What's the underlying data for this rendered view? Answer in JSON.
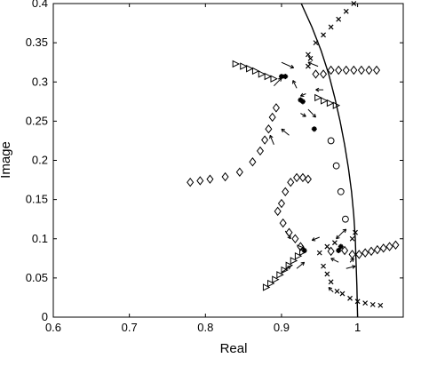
{
  "chart_data": {
    "type": "scatter",
    "xlabel": "Real",
    "ylabel": "Image",
    "xlim": [
      0.6,
      1.06
    ],
    "ylim": [
      0,
      0.4
    ],
    "xticks": [
      "0.6",
      "0.7",
      "0.8",
      "0.9",
      "1"
    ],
    "yticks": [
      "0",
      "0.05",
      "0.1",
      "0.15",
      "0.2",
      "0.25",
      "0.3",
      "0.35",
      "0.4"
    ],
    "xtick_values": [
      0.6,
      0.7,
      0.8,
      0.9,
      1.0
    ],
    "ytick_values": [
      0,
      0.05,
      0.1,
      0.15,
      0.2,
      0.25,
      0.3,
      0.35,
      0.4
    ],
    "curve": {
      "points": [
        [
          0.926,
          0.4
        ],
        [
          0.94,
          0.37
        ],
        [
          0.952,
          0.34
        ],
        [
          0.962,
          0.31
        ],
        [
          0.97,
          0.28
        ],
        [
          0.977,
          0.25
        ],
        [
          0.983,
          0.22
        ],
        [
          0.988,
          0.19
        ],
        [
          0.992,
          0.16
        ],
        [
          0.995,
          0.13
        ],
        [
          0.997,
          0.1
        ],
        [
          0.998,
          0.07
        ],
        [
          0.999,
          0.04
        ],
        [
          1.0,
          0.0
        ]
      ]
    },
    "series": [
      {
        "marker": "diamond",
        "points": [
          [
            0.78,
            0.172
          ],
          [
            0.793,
            0.174
          ],
          [
            0.806,
            0.176
          ],
          [
            0.826,
            0.179
          ],
          [
            0.845,
            0.185
          ],
          [
            0.862,
            0.198
          ],
          [
            0.872,
            0.212
          ],
          [
            0.878,
            0.226
          ],
          [
            0.883,
            0.24
          ],
          [
            0.888,
            0.255
          ],
          [
            0.893,
            0.267
          ],
          [
            0.965,
            0.315
          ],
          [
            0.975,
            0.315
          ],
          [
            0.985,
            0.315
          ],
          [
            0.995,
            0.315
          ],
          [
            1.005,
            0.315
          ],
          [
            1.015,
            0.315
          ],
          [
            1.025,
            0.315
          ],
          [
            0.955,
            0.31
          ],
          [
            0.945,
            0.31
          ],
          [
            0.9,
            0.145
          ],
          [
            0.905,
            0.16
          ],
          [
            0.912,
            0.172
          ],
          [
            0.92,
            0.178
          ],
          [
            0.928,
            0.178
          ],
          [
            0.935,
            0.176
          ],
          [
            0.895,
            0.135
          ],
          [
            0.902,
            0.12
          ],
          [
            0.91,
            0.108
          ],
          [
            0.918,
            0.1
          ],
          [
            0.925,
            0.09
          ],
          [
            0.993,
            0.08
          ],
          [
            1.002,
            0.08
          ],
          [
            1.01,
            0.082
          ],
          [
            1.018,
            0.084
          ],
          [
            1.026,
            0.086
          ],
          [
            1.034,
            0.088
          ],
          [
            1.042,
            0.09
          ],
          [
            1.05,
            0.092
          ],
          [
            0.983,
            0.085
          ],
          [
            0.965,
            0.084
          ]
        ]
      },
      {
        "marker": "triangle",
        "points": [
          [
            0.84,
            0.323
          ],
          [
            0.85,
            0.32
          ],
          [
            0.858,
            0.317
          ],
          [
            0.866,
            0.314
          ],
          [
            0.874,
            0.31
          ],
          [
            0.882,
            0.307
          ],
          [
            0.89,
            0.304
          ],
          [
            0.948,
            0.28
          ],
          [
            0.956,
            0.276
          ],
          [
            0.964,
            0.273
          ],
          [
            0.972,
            0.27
          ],
          [
            0.88,
            0.038
          ],
          [
            0.886,
            0.043
          ],
          [
            0.892,
            0.048
          ],
          [
            0.898,
            0.054
          ],
          [
            0.904,
            0.06
          ],
          [
            0.91,
            0.066
          ],
          [
            0.916,
            0.072
          ],
          [
            0.922,
            0.078
          ],
          [
            0.928,
            0.083
          ]
        ]
      },
      {
        "marker": "circle",
        "points": [
          [
            0.965,
            0.225
          ],
          [
            0.972,
            0.193
          ],
          [
            0.978,
            0.16
          ],
          [
            0.984,
            0.125
          ]
        ]
      },
      {
        "marker": "x",
        "points": [
          [
            0.935,
            0.335
          ],
          [
            0.945,
            0.35
          ],
          [
            0.955,
            0.36
          ],
          [
            0.965,
            0.37
          ],
          [
            0.975,
            0.38
          ],
          [
            0.985,
            0.39
          ],
          [
            0.995,
            0.4
          ],
          [
            0.935,
            0.32
          ],
          [
            0.938,
            0.33
          ],
          [
            0.95,
            0.082
          ],
          [
            0.955,
            0.065
          ],
          [
            0.96,
            0.055
          ],
          [
            0.965,
            0.045
          ],
          [
            0.973,
            0.033
          ],
          [
            0.98,
            0.03
          ],
          [
            0.99,
            0.024
          ],
          [
            1.0,
            0.02
          ],
          [
            1.01,
            0.018
          ],
          [
            1.02,
            0.016
          ],
          [
            1.03,
            0.015
          ],
          [
            0.993,
            0.1
          ],
          [
            0.997,
            0.108
          ],
          [
            0.96,
            0.09
          ],
          [
            0.97,
            0.095
          ]
        ]
      },
      {
        "marker": "star",
        "points": [
          [
            0.9,
            0.307
          ],
          [
            0.905,
            0.307
          ],
          [
            0.925,
            0.277
          ],
          [
            0.928,
            0.275
          ],
          [
            0.943,
            0.24
          ],
          [
            0.93,
            0.085
          ],
          [
            0.975,
            0.085
          ],
          [
            0.978,
            0.09
          ]
        ]
      }
    ],
    "arrows": [
      [
        [
          0.9,
          0.325
        ],
        [
          0.916,
          0.318
        ]
      ],
      [
        [
          0.948,
          0.32
        ],
        [
          0.935,
          0.325
        ]
      ],
      [
        [
          0.89,
          0.295
        ],
        [
          0.9,
          0.305
        ]
      ],
      [
        [
          0.92,
          0.292
        ],
        [
          0.915,
          0.302
        ]
      ],
      [
        [
          0.925,
          0.26
        ],
        [
          0.932,
          0.256
        ]
      ],
      [
        [
          0.932,
          0.285
        ],
        [
          0.925,
          0.282
        ]
      ],
      [
        [
          0.89,
          0.22
        ],
        [
          0.885,
          0.232
        ]
      ],
      [
        [
          0.91,
          0.232
        ],
        [
          0.9,
          0.24
        ]
      ],
      [
        [
          0.955,
          0.29
        ],
        [
          0.945,
          0.29
        ]
      ],
      [
        [
          0.935,
          0.265
        ],
        [
          0.945,
          0.255
        ]
      ],
      [
        [
          0.905,
          0.11
        ],
        [
          0.912,
          0.1
        ]
      ],
      [
        [
          0.92,
          0.092
        ],
        [
          0.93,
          0.088
        ]
      ],
      [
        [
          0.95,
          0.102
        ],
        [
          0.94,
          0.098
        ]
      ],
      [
        [
          0.975,
          0.07
        ],
        [
          0.965,
          0.075
        ]
      ],
      [
        [
          0.98,
          0.108
        ],
        [
          0.972,
          0.1
        ]
      ],
      [
        [
          0.9,
          0.057
        ],
        [
          0.912,
          0.065
        ]
      ],
      [
        [
          0.92,
          0.062
        ],
        [
          0.93,
          0.07
        ]
      ],
      [
        [
          0.99,
          0.07
        ],
        [
          0.995,
          0.075
        ]
      ],
      [
        [
          0.985,
          0.062
        ],
        [
          0.997,
          0.065
        ]
      ],
      [
        [
          0.98,
          0.108
        ],
        [
          0.985,
          0.112
        ]
      ],
      [
        [
          0.968,
          0.032
        ],
        [
          0.962,
          0.038
        ]
      ]
    ]
  }
}
